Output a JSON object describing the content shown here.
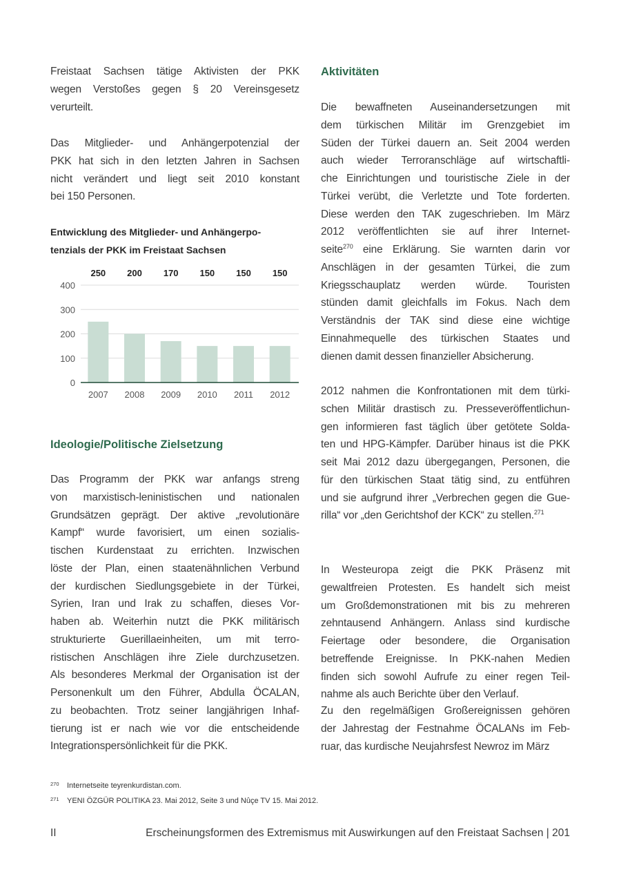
{
  "left": {
    "para1": [
      "Freistaat Sachsen tätige Aktivisten der PKK",
      "wegen Verstoßes gegen § 20 Vereinsgesetz",
      "verurteilt."
    ],
    "para2": [
      "Das Mitglieder- und Anhängerpotenzial der",
      "PKK hat sich in den letzten Jahren in Sachsen",
      "nicht verändert und liegt seit 2010 konstant",
      "bei 150 Personen."
    ],
    "heading": "Ideologie/Politische Zielsetzung",
    "para3": [
      "Das Programm der PKK war anfangs streng",
      "von marxistisch-leninistischen und nationalen",
      "Grundsätzen geprägt. Der aktive „revolutionäre",
      "Kampf“ wurde favorisiert, um einen sozialis-",
      "tischen Kurdenstaat zu errichten. Inzwischen",
      "löste der Plan, einen staatenähnlichen Verbund",
      "der kurdischen Siedlungsgebiete in der Türkei,",
      "Syrien, Iran und Irak zu schaffen, dieses Vor-",
      "haben ab. Weiterhin nutzt die PKK militärisch",
      "strukturierte Guerillaeinheiten, um mit terro-",
      "ristischen Anschlägen ihre Ziele durchzusetzen.",
      "Als besonderes Merkmal der Organisation ist der",
      "Personenkult um den Führer, Abdulla ÖCALAN,",
      "zu beobachten. Trotz seiner langjährigen Inhaf-",
      "tierung ist er nach wie vor die entscheidende",
      "Integrationspersönlichkeit für die PKK."
    ]
  },
  "chart_data": {
    "type": "bar",
    "title": [
      "Entwicklung des Mitglieder- und Anhängerpo-",
      "tenzials der PKK im Freistaat Sachsen"
    ],
    "categories": [
      "2007",
      "2008",
      "2009",
      "2010",
      "2011",
      "2012"
    ],
    "values": [
      250,
      200,
      170,
      150,
      150,
      150
    ],
    "data_labels": [
      "250",
      "200",
      "170",
      "150",
      "150",
      "150"
    ],
    "yticks": [
      "0",
      "100",
      "200",
      "300",
      "400"
    ],
    "ylim": [
      0,
      400
    ],
    "grid": true,
    "bar_color": "#c9ddd3",
    "axis_color": "#1f4a36"
  },
  "right": {
    "heading": "Aktivitäten",
    "para1": [
      [
        {
          "t": "Die bewaffneten Auseinandersetzungen mit"
        }
      ],
      [
        {
          "t": "dem türkischen Militär im Grenzgebiet im"
        }
      ],
      [
        {
          "t": "Süden der Türkei dauern an. Seit 2004 werden"
        }
      ],
      [
        {
          "t": "auch wieder Terroranschläge auf wirtschaftli-"
        }
      ],
      [
        {
          "t": "che Einrichtungen und touristische Ziele in der"
        }
      ],
      [
        {
          "t": "Türkei verübt, die Verletzte und Tote forderten."
        }
      ],
      [
        {
          "t": "Diese werden den TAK zugeschrieben. Im März"
        }
      ],
      [
        {
          "t": "2012 veröffentlichten sie auf ihrer Internet-"
        }
      ],
      [
        {
          "t": "seite"
        },
        {
          "s": "270"
        },
        {
          "t": " eine Erklärung. Sie warnten darin vor"
        }
      ],
      [
        {
          "t": "Anschlägen in der gesamten Türkei, die zum"
        }
      ],
      [
        {
          "t": "Kriegsschauplatz werden würde. Touristen"
        }
      ],
      [
        {
          "t": "stünden damit gleichfalls im Fokus. Nach dem"
        }
      ],
      [
        {
          "t": "Verständnis der TAK sind diese eine wichtige"
        }
      ],
      [
        {
          "t": "Einnahmequelle des türkischen Staates und"
        }
      ],
      [
        {
          "t": "dienen damit dessen finanzieller Absicherung."
        }
      ]
    ],
    "para2": [
      [
        {
          "t": "2012 nahmen die Konfrontationen mit dem türki-"
        }
      ],
      [
        {
          "t": "schen Militär drastisch zu. Presseveröffentlichun-"
        }
      ],
      [
        {
          "t": "gen informieren fast täglich über getötete Solda-"
        }
      ],
      [
        {
          "t": "ten und HPG-Kämpfer. Darüber hinaus ist die PKK"
        }
      ],
      [
        {
          "t": "seit Mai 2012 dazu übergegangen, Personen, die"
        }
      ],
      [
        {
          "t": "für den türkischen Staat tätig sind, zu entführen"
        }
      ],
      [
        {
          "t": "und sie aufgrund ihrer „Verbrechen gegen die Gue-"
        }
      ],
      [
        {
          "t": "rilla“ vor „den Gerichtshof der KCK“ zu stellen."
        },
        {
          "s": "271"
        }
      ]
    ],
    "para3": [
      [
        {
          "t": "In Westeuropa zeigt die PKK Präsenz mit"
        }
      ],
      [
        {
          "t": "gewaltfreien Protesten. Es handelt sich meist"
        }
      ],
      [
        {
          "t": "um Großdemonstrationen mit bis zu mehreren"
        }
      ],
      [
        {
          "t": "zehntausend Anhängern. Anlass sind kurdische"
        }
      ],
      [
        {
          "t": "Feiertage oder besondere, die Organisation"
        }
      ],
      [
        {
          "t": "betreffende Ereignisse. In PKK-nahen Medien"
        }
      ],
      [
        {
          "t": "finden sich sowohl Aufrufe zu einer regen Teil-"
        }
      ],
      [
        {
          "t": "nahme als auch Berichte über den Verlauf."
        }
      ]
    ],
    "para4": [
      [
        {
          "t": "Zu den regelmäßigen Großereignissen gehören"
        }
      ],
      [
        {
          "t": "der Jahrestag der Festnahme ÖCALANs im Feb-"
        }
      ],
      [
        {
          "t": "ruar, das kurdische Neujahrsfest Newroz im März"
        }
      ]
    ]
  },
  "footnotes": [
    {
      "num": "270",
      "text": "Internetseite teyrenkurdistan.com."
    },
    {
      "num": "271",
      "text": "YENI ÖZGÜR POLITIKA 23. Mai 2012, Seite 3 und Nûçe TV 15. Mai 2012."
    }
  ],
  "footer": {
    "section": "II",
    "title": "Erscheinungsformen des Extremismus mit Auswirkungen auf den Freistaat Sachsen | 201"
  }
}
